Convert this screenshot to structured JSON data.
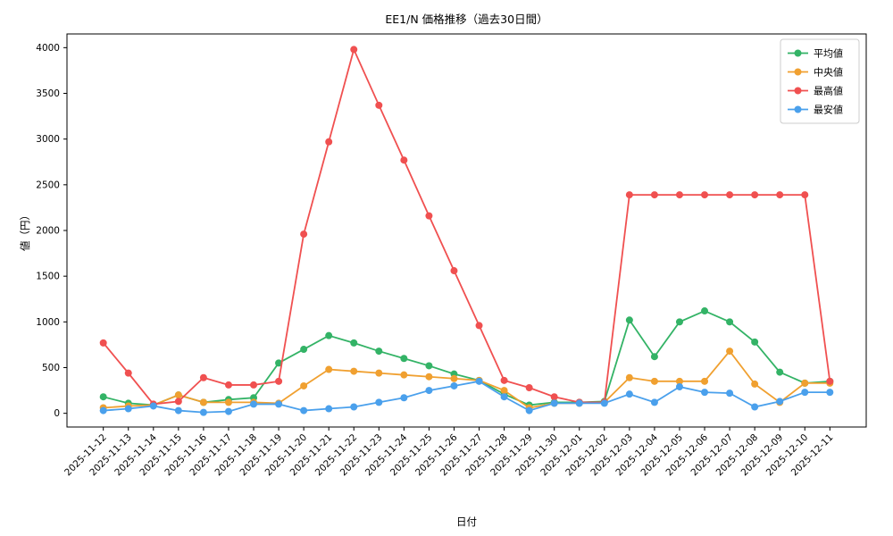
{
  "figure": {
    "title": "EE1/N 価格推移（過去30日間）",
    "xlabel": "日付",
    "ylabel": "値（円）"
  },
  "chart_data": {
    "type": "line",
    "title": "EE1/N 価格推移（過去30日間）",
    "xlabel": "日付",
    "ylabel": "値（円）",
    "grid": false,
    "legend_position": "upper right",
    "ylim": [
      -150,
      4150
    ],
    "yticks": [
      0,
      500,
      1000,
      1500,
      2000,
      2500,
      3000,
      3500,
      4000
    ],
    "x": [
      "2025-11-12",
      "2025-11-13",
      "2025-11-14",
      "2025-11-15",
      "2025-11-16",
      "2025-11-17",
      "2025-11-18",
      "2025-11-19",
      "2025-11-20",
      "2025-11-21",
      "2025-11-22",
      "2025-11-23",
      "2025-11-24",
      "2025-11-25",
      "2025-11-26",
      "2025-11-27",
      "2025-11-28",
      "2025-11-29",
      "2025-11-30",
      "2025-12-01",
      "2025-12-02",
      "2025-12-03",
      "2025-12-04",
      "2025-12-05",
      "2025-12-06",
      "2025-12-07",
      "2025-12-08",
      "2025-12-09",
      "2025-12-10",
      "2025-12-11"
    ],
    "series": [
      {
        "name": "平均値",
        "color": "#33b366",
        "values": [
          180,
          110,
          90,
          200,
          120,
          150,
          170,
          550,
          700,
          850,
          770,
          680,
          600,
          520,
          430,
          360,
          210,
          90,
          120,
          120,
          130,
          1020,
          620,
          1000,
          1120,
          1000,
          780,
          450,
          330,
          350
        ]
      },
      {
        "name": "中央値",
        "color": "#f0a030",
        "values": [
          60,
          80,
          90,
          200,
          120,
          120,
          120,
          110,
          300,
          480,
          460,
          440,
          420,
          400,
          380,
          360,
          250,
          60,
          110,
          110,
          120,
          390,
          350,
          350,
          350,
          680,
          320,
          120,
          330,
          330
        ]
      },
      {
        "name": "最高値",
        "color": "#f05050",
        "values": [
          770,
          440,
          100,
          130,
          390,
          310,
          310,
          350,
          1960,
          2970,
          3980,
          3370,
          2770,
          2160,
          1560,
          960,
          360,
          280,
          180,
          120,
          120,
          2390,
          2390,
          2390,
          2390,
          2390,
          2390,
          2390,
          2390,
          350
        ]
      },
      {
        "name": "最安値",
        "color": "#4aa0ec",
        "values": [
          30,
          50,
          80,
          30,
          10,
          20,
          100,
          100,
          30,
          50,
          70,
          120,
          170,
          250,
          300,
          350,
          180,
          30,
          110,
          110,
          110,
          210,
          120,
          290,
          230,
          220,
          70,
          130,
          230,
          230
        ]
      }
    ]
  }
}
